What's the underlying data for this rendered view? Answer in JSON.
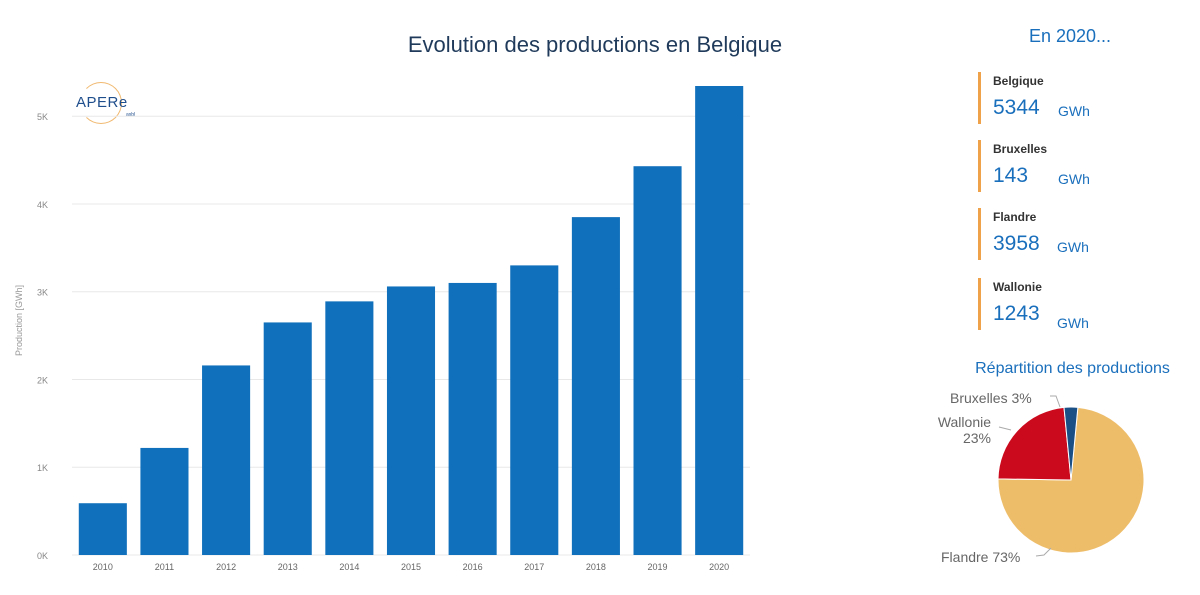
{
  "logo": {
    "text": "APERe",
    "sub": "asbl"
  },
  "side": {
    "title": "En 2020...",
    "kpis": [
      {
        "label": "Belgique",
        "value": "5344",
        "unit": "GWh"
      },
      {
        "label": "Bruxelles",
        "value": "143",
        "unit": "GWh"
      },
      {
        "label": "Flandre",
        "value": "3958",
        "unit": "GWh"
      },
      {
        "label": "Wallonie",
        "value": "1243",
        "unit": "GWh"
      }
    ]
  },
  "pie": {
    "title": "Répartition des productions",
    "labels": {
      "bruxelles": "Bruxelles 3%",
      "wallonie_name": "Wallonie",
      "wallonie_pct": "23%",
      "flandre": "Flandre 73%"
    }
  },
  "chart_data": [
    {
      "type": "bar",
      "title": "Evolution des productions en Belgique",
      "xlabel": "",
      "ylabel": "Production [GWh]",
      "categories": [
        "2010",
        "2011",
        "2012",
        "2013",
        "2014",
        "2015",
        "2016",
        "2017",
        "2018",
        "2019",
        "2020"
      ],
      "values": [
        590,
        1220,
        2160,
        2650,
        2890,
        3060,
        3100,
        3300,
        3850,
        4430,
        5344
      ],
      "ylim": [
        0,
        5344
      ],
      "yticks": [
        0,
        1000,
        2000,
        3000,
        4000,
        5000
      ],
      "ytick_labels": [
        "0K",
        "1K",
        "2K",
        "3K",
        "4K",
        "5K"
      ],
      "grid": true,
      "color": "#1070bb"
    },
    {
      "type": "pie",
      "title": "Répartition des productions",
      "slices": [
        {
          "name": "Flandre",
          "value": 73,
          "color": "#eebd6a"
        },
        {
          "name": "Wallonie",
          "value": 23,
          "color": "#cc0a1e"
        },
        {
          "name": "Bruxelles",
          "value": 3,
          "color": "#1a4f86"
        }
      ]
    }
  ]
}
